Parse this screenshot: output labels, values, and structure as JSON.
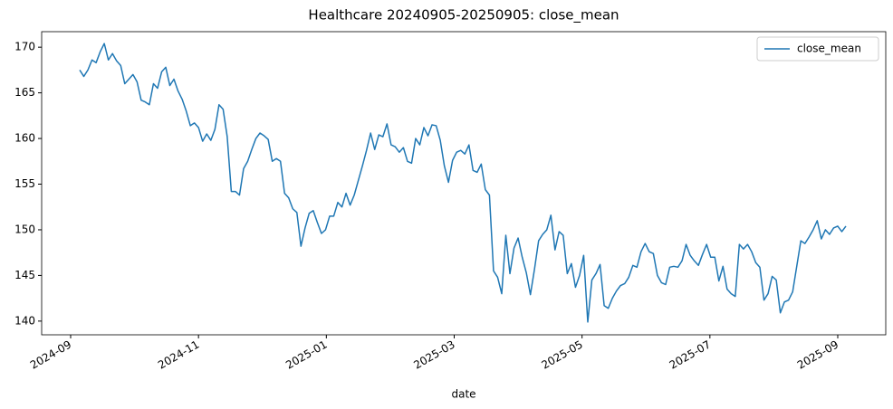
{
  "chart_data": {
    "type": "line",
    "title": "Healthcare 20240905-20250905: close_mean",
    "x_label": "date",
    "xticks": [
      "2024-09",
      "2024-11",
      "2025-01",
      "2025-03",
      "2025-05",
      "2025-07",
      "2025-09"
    ],
    "ylim": [
      138.5,
      171.7
    ],
    "yticks": [
      140,
      145,
      150,
      155,
      160,
      165,
      170
    ],
    "grid": false,
    "legend": "upper right",
    "series": [
      {
        "name": "close_mean",
        "color": "#1f77b4",
        "values": [
          167.5,
          166.8,
          167.5,
          168.6,
          168.3,
          169.5,
          170.4,
          168.6,
          169.3,
          168.5,
          168.0,
          166.0,
          166.5,
          167.0,
          166.2,
          164.2,
          164.0,
          163.7,
          166.0,
          165.5,
          167.3,
          167.8,
          165.8,
          166.5,
          165.2,
          164.3,
          163.0,
          161.4,
          161.7,
          161.2,
          159.7,
          160.5,
          159.8,
          161.0,
          163.7,
          163.2,
          160.2,
          154.2,
          154.2,
          153.8,
          156.7,
          157.5,
          158.8,
          160.0,
          160.6,
          160.3,
          159.9,
          157.5,
          157.8,
          157.5,
          154.0,
          153.5,
          152.3,
          151.9,
          148.2,
          150.2,
          151.8,
          152.1,
          150.8,
          149.6,
          150.0,
          151.5,
          151.5,
          153.0,
          152.5,
          154.0,
          152.7,
          153.8,
          155.4,
          157.0,
          158.7,
          160.6,
          158.8,
          160.4,
          160.2,
          161.6,
          159.3,
          159.1,
          158.5,
          159.0,
          157.5,
          157.3,
          160.0,
          159.3,
          161.2,
          160.3,
          161.5,
          161.4,
          159.8,
          157.0,
          155.2,
          157.6,
          158.5,
          158.7,
          158.3,
          159.3,
          156.5,
          156.3,
          157.2,
          154.4,
          153.8,
          145.5,
          144.8,
          143.0,
          149.4,
          145.2,
          148.0,
          149.1,
          147.0,
          145.3,
          142.9,
          145.7,
          148.8,
          149.5,
          150.0,
          151.6,
          147.8,
          149.8,
          149.4,
          145.2,
          146.3,
          143.7,
          145.0,
          147.2,
          139.9,
          144.5,
          145.2,
          146.2,
          141.7,
          141.4,
          142.5,
          143.3,
          143.9,
          144.1,
          144.8,
          146.1,
          145.9,
          147.6,
          148.5,
          147.6,
          147.4,
          145.0,
          144.2,
          144.0,
          145.9,
          146.0,
          145.9,
          146.6,
          148.4,
          147.2,
          146.6,
          146.1,
          147.3,
          148.4,
          147.0,
          147.0,
          144.4,
          146.0,
          143.5,
          143.0,
          142.7,
          148.4,
          147.9,
          148.4,
          147.6,
          146.4,
          145.9,
          142.3,
          143.0,
          144.9,
          144.5,
          140.9,
          142.1,
          142.3,
          143.2,
          146.0,
          148.8,
          148.5,
          149.2,
          150.0,
          151.0,
          149.0,
          150.0,
          149.5,
          150.2,
          150.4,
          149.8,
          150.4
        ]
      }
    ]
  }
}
